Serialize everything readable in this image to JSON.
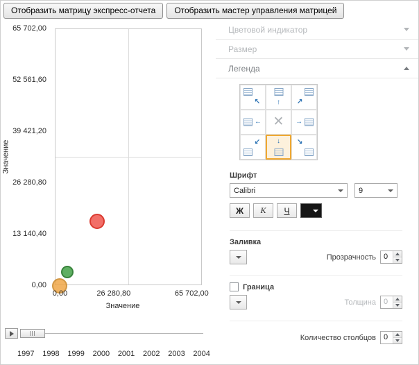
{
  "toolbar": {
    "express_report_button": "Отобразить матрицу экспресс-отчета",
    "matrix_master_button": "Отобразить мастер управления матрицей"
  },
  "chart_data": {
    "type": "scatter",
    "title": "",
    "xlabel": "Значение",
    "ylabel": "Значение",
    "xlim": [
      0,
      65702
    ],
    "ylim": [
      0,
      65702
    ],
    "grid": "center-cross",
    "x_tick_labels": [
      "0,00",
      "26 280,80",
      "65 702,00"
    ],
    "x_tick_values": [
      0,
      26280.8,
      65702
    ],
    "y_tick_labels": [
      "65 702,00",
      "52 561,60",
      "39 421,20",
      "26 280,80",
      "13 140,40",
      "0,00"
    ],
    "y_tick_values": [
      65702,
      52561.6,
      39421.2,
      26280.8,
      13140.4,
      0
    ],
    "points": [
      {
        "name": "red-bubble",
        "x": 18600,
        "y": 16500,
        "radius": 11,
        "fill": "#f26860",
        "stroke": "#d93025",
        "opacity": 0.95
      },
      {
        "name": "green-bubble",
        "x": 5300,
        "y": 3550,
        "radius": 9,
        "fill": "#57ab5a",
        "stroke": "#2f7d32",
        "opacity": 0.95
      },
      {
        "name": "orange-bubble",
        "x": 1900,
        "y": 0,
        "radius": 11,
        "fill": "#efa23d",
        "stroke": "#c87f17",
        "opacity": 0.8
      }
    ],
    "timeline_years": [
      "1997",
      "1998",
      "1999",
      "2000",
      "2001",
      "2002",
      "2003",
      "2004"
    ]
  },
  "panel": {
    "sections": [
      {
        "label": "Цветовой индикатор",
        "expanded": false,
        "enabled": false
      },
      {
        "label": "Размер",
        "expanded": false,
        "enabled": false
      },
      {
        "label": "Легенда",
        "expanded": true,
        "enabled": true
      }
    ],
    "legend": {
      "position_selected": "bottom",
      "selection_color": "#f0a830",
      "positions": [
        {
          "id": "top-left",
          "arrow": "↖"
        },
        {
          "id": "top",
          "arrow": "↑"
        },
        {
          "id": "top-right",
          "arrow": "↗"
        },
        {
          "id": "left",
          "arrow": "←"
        },
        {
          "id": "center",
          "arrow": "✕"
        },
        {
          "id": "right",
          "arrow": "→"
        },
        {
          "id": "bottom-left",
          "arrow": "↙"
        },
        {
          "id": "bottom",
          "arrow": "↓"
        },
        {
          "id": "bottom-right",
          "arrow": "↘"
        }
      ],
      "font": {
        "label": "Шрифт",
        "family_value": "Calibri",
        "size_value": "9",
        "bold_label": "Ж",
        "italic_label": "К",
        "underline_label": "Ч",
        "color_value": "#000000"
      },
      "fill": {
        "label": "Заливка",
        "transparency_label": "Прозрачность",
        "transparency_value": "0"
      },
      "border": {
        "label": "Граница",
        "checked": false,
        "thickness_label": "Толщина",
        "thickness_value": "0"
      },
      "columns": {
        "label": "Количество столбцов",
        "value": "0"
      }
    }
  }
}
